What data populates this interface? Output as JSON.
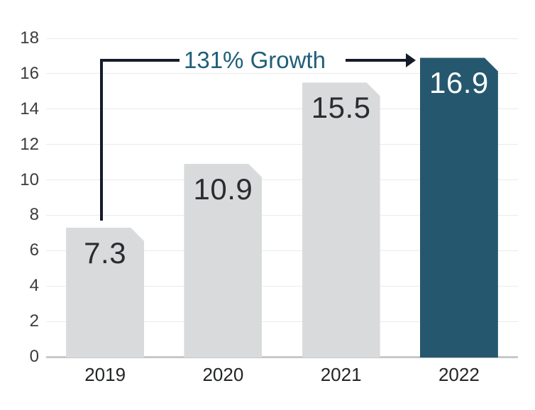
{
  "chart_data": {
    "type": "bar",
    "title": "",
    "xlabel": "",
    "ylabel": "",
    "categories": [
      "2019",
      "2020",
      "2021",
      "2022"
    ],
    "values": [
      7.3,
      10.9,
      15.5,
      16.9
    ],
    "value_labels": [
      "7.3",
      "10.9",
      "15.5",
      "16.9"
    ],
    "ylim": [
      0,
      18
    ],
    "yticks": [
      0,
      2,
      4,
      6,
      8,
      10,
      12,
      14,
      16,
      18
    ],
    "grid": true,
    "legend_position": "none",
    "highlight_index": 3,
    "annotation": {
      "text": "131% Growth",
      "from_category": "2019",
      "to_category": "2022"
    }
  },
  "colors": {
    "background": "#ffffff",
    "bar_default": "#d9dadb",
    "bar_highlight": "#25586e",
    "value_label_on_gray": "#2a2c2f",
    "value_label_on_highlight": "#ffffff",
    "annotation_text": "#1f5e79",
    "annotation_line": "#161b2a",
    "gridline": "#e9eaea",
    "axis_baseline": "#c6c8ca",
    "y_tick_label": "#3a3c3e",
    "x_tick_label": "#222426"
  }
}
